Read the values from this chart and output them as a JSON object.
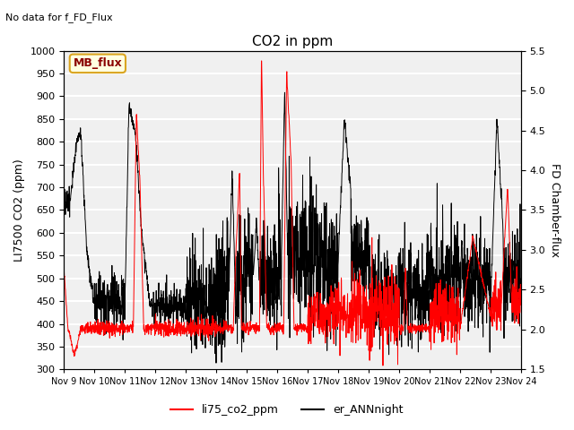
{
  "title": "CO2 in ppm",
  "subtitle": "No data for f_FD_Flux",
  "ylabel_left": "LI7500 CO2 (ppm)",
  "ylabel_right": "FD Chamber-flux",
  "ylim_left": [
    300,
    1000
  ],
  "ylim_right": [
    1.5,
    5.5
  ],
  "xlabel_ticks": [
    "Nov 9",
    "Nov 10",
    "Nov 11",
    "Nov 12",
    "Nov 13",
    "Nov 14",
    "Nov 15",
    "Nov 16",
    "Nov 17",
    "Nov 18",
    "Nov 19",
    "Nov 20",
    "Nov 21",
    "Nov 22",
    "Nov 23",
    "Nov 24"
  ],
  "legend_label_red": "li75_co2_ppm",
  "legend_label_black": "er_ANNnight",
  "mb_flux_label": "MB_flux",
  "background_color": "#f0f0f0",
  "grid_color": "white",
  "line_color_red": "red",
  "line_color_black": "black"
}
